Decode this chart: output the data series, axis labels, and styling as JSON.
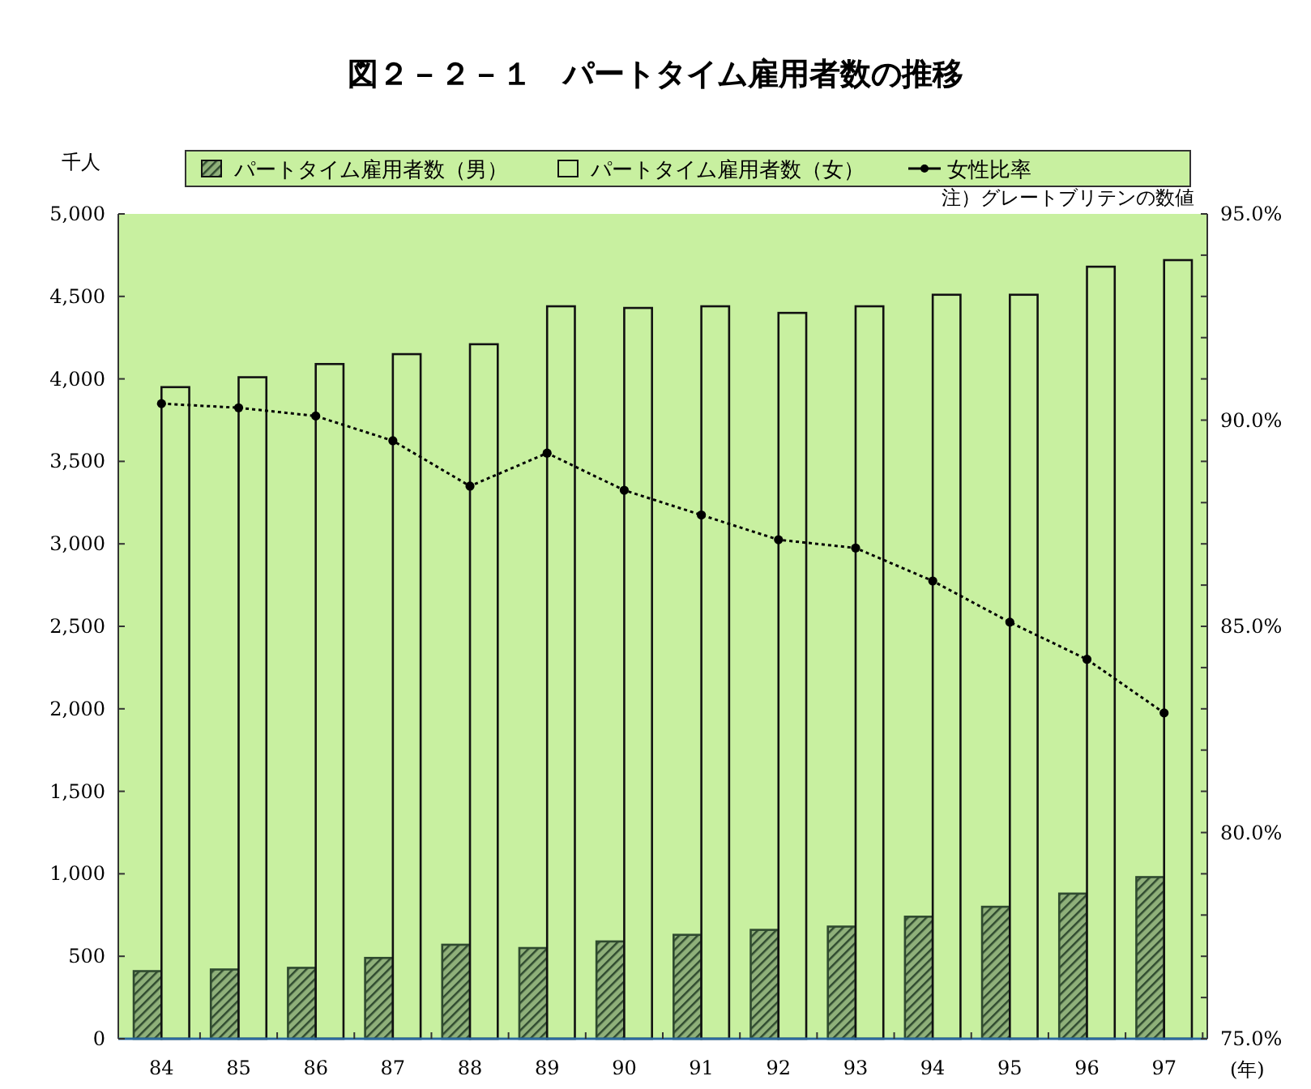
{
  "chart_data": {
    "type": "bar",
    "title": "図２－２－１　パートタイム雇用者数の推移",
    "categories": [
      "84",
      "85",
      "86",
      "87",
      "88",
      "89",
      "90",
      "91",
      "92",
      "93",
      "94",
      "95",
      "96",
      "97"
    ],
    "series": [
      {
        "name": "パートタイム雇用者数（男）",
        "color": "#2f4a2f",
        "values": [
          410,
          420,
          430,
          490,
          570,
          550,
          590,
          630,
          660,
          680,
          740,
          800,
          880,
          980
        ]
      },
      {
        "name": "パートタイム雇用者数（女）",
        "color": "#c8f0a0",
        "values": [
          3950,
          4010,
          4090,
          4150,
          4210,
          4440,
          4430,
          4440,
          4400,
          4440,
          4510,
          4510,
          4680,
          4720
        ]
      },
      {
        "name": "女性比率",
        "type": "line",
        "axis": "y2",
        "color": "#000000",
        "marker": "circle",
        "line_style": "dotted",
        "values": [
          90.4,
          90.3,
          90.1,
          89.5,
          88.4,
          89.2,
          88.3,
          87.7,
          87.1,
          86.9,
          86.1,
          85.1,
          84.2,
          82.9
        ]
      }
    ],
    "ylabel": "千人",
    "xlabel": "(年)",
    "ylim": [
      0,
      5000
    ],
    "yticks": [
      {
        "value": 0,
        "label": "0"
      },
      {
        "value": 500,
        "label": "500"
      },
      {
        "value": 1000,
        "label": "1,000"
      },
      {
        "value": 1500,
        "label": "1,500"
      },
      {
        "value": 2000,
        "label": "2,000"
      },
      {
        "value": 2500,
        "label": "2,500"
      },
      {
        "value": 3000,
        "label": "3,000"
      },
      {
        "value": 3500,
        "label": "3,500"
      },
      {
        "value": 4000,
        "label": "4,000"
      },
      {
        "value": 4500,
        "label": "4,500"
      },
      {
        "value": 5000,
        "label": "5,000"
      }
    ],
    "y2lim": [
      75,
      95
    ],
    "y2ticks": [
      {
        "value": 75,
        "label": "75.0%"
      },
      {
        "value": 76,
        "label": null
      },
      {
        "value": 77,
        "label": null
      },
      {
        "value": 78,
        "label": null
      },
      {
        "value": 79,
        "label": null
      },
      {
        "value": 80,
        "label": "80.0%"
      },
      {
        "value": 81,
        "label": null
      },
      {
        "value": 82,
        "label": null
      },
      {
        "value": 83,
        "label": null
      },
      {
        "value": 84,
        "label": null
      },
      {
        "value": 85,
        "label": "85.0%"
      },
      {
        "value": 86,
        "label": null
      },
      {
        "value": 87,
        "label": null
      },
      {
        "value": 88,
        "label": null
      },
      {
        "value": 89,
        "label": null
      },
      {
        "value": 90,
        "label": "90.0%"
      },
      {
        "value": 91,
        "label": null
      },
      {
        "value": 92,
        "label": null
      },
      {
        "value": 93,
        "label": null
      },
      {
        "value": 94,
        "label": null
      },
      {
        "value": 95,
        "label": "95.0%"
      }
    ],
    "annotations": [
      "注）グレートブリテンの数値"
    ],
    "legend": "top",
    "grid": false
  }
}
